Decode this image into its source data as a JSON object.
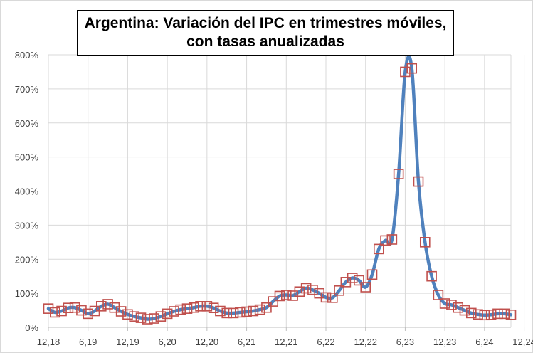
{
  "chart_data": {
    "type": "line",
    "title_line1": "Argentina: Variación del IPC en trimestres móviles,",
    "title_line2": "con tasas anualizadas",
    "xlabel": "",
    "ylabel": "",
    "ylim": [
      0,
      800
    ],
    "yticks": [
      "0%",
      "100%",
      "200%",
      "300%",
      "400%",
      "500%",
      "600%",
      "700%",
      "800%"
    ],
    "xtick_labels": [
      "12,18",
      "6,19",
      "12,19",
      "6,20",
      "12,20",
      "6,21",
      "12,21",
      "6,22",
      "12,22",
      "6,23",
      "12,23",
      "6,24",
      "12,24"
    ],
    "grid": true,
    "line_color": "#4f81bd",
    "marker_color": "#c0504d",
    "series": [
      {
        "values": [
          55,
          44,
          48,
          57,
          58,
          50,
          40,
          48,
          62,
          68,
          58,
          47,
          38,
          32,
          28,
          24,
          26,
          32,
          40,
          47,
          52,
          55,
          58,
          62,
          62,
          57,
          48,
          42,
          42,
          44,
          46,
          48,
          52,
          58,
          76,
          92,
          95,
          93,
          105,
          115,
          110,
          100,
          88,
          87,
          108,
          133,
          145,
          138,
          118,
          155,
          230,
          255,
          258,
          450,
          750,
          760,
          428,
          250,
          150,
          95,
          70,
          66,
          58,
          50,
          42,
          38,
          36,
          37,
          40,
          40,
          37
        ]
      }
    ]
  }
}
